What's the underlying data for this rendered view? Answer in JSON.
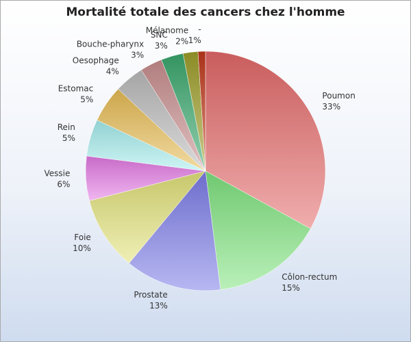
{
  "chart_data": {
    "type": "pie",
    "title": "Mortalité totale des cancers chez l'homme",
    "slices": [
      {
        "label": "Poumon",
        "value": 33,
        "value_label": "33%",
        "color": "#e46a6a"
      },
      {
        "label": "Côlon-rectum",
        "value": 15,
        "value_label": "15%",
        "color": "#7fe37f"
      },
      {
        "label": "Prostate",
        "value": 13,
        "value_label": "13%",
        "color": "#7c7ce8"
      },
      {
        "label": "Foie",
        "value": 10,
        "value_label": "10%",
        "color": "#e2e27a"
      },
      {
        "label": "Vessie",
        "value": 6,
        "value_label": "6%",
        "color": "#e37ae3"
      },
      {
        "label": "Rein",
        "value": 5,
        "value_label": "5%",
        "color": "#a6eded"
      },
      {
        "label": "Estomac",
        "value": 5,
        "value_label": "5%",
        "color": "#e8bd55"
      },
      {
        "label": "Oesophage",
        "value": 4,
        "value_label": "4%",
        "color": "#bcbcbc"
      },
      {
        "label": "Bouche-pharynx",
        "value": 3,
        "value_label": "3%",
        "color": "#c98e8e"
      },
      {
        "label": "SNC",
        "value": 3,
        "value_label": "3%",
        "color": "#3aa86d"
      },
      {
        "label": "Mélanome",
        "value": 2,
        "value_label": "2%",
        "color": "#9e9e2a"
      },
      {
        "label": "-",
        "value": 1,
        "value_label": "1%",
        "color": "#c0391b"
      }
    ]
  }
}
